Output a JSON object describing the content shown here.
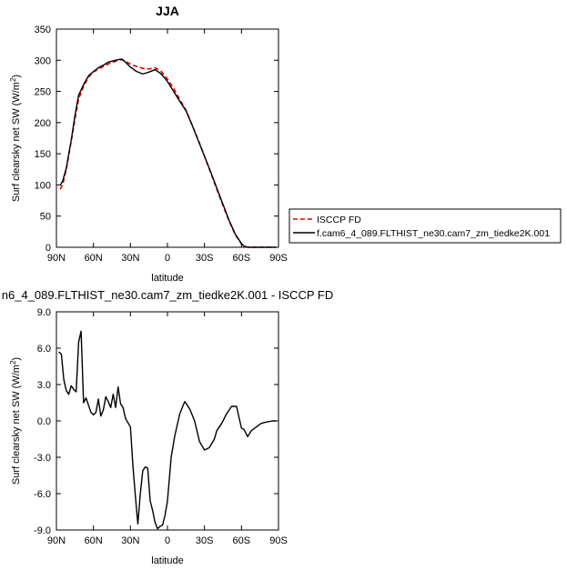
{
  "chart_data": [
    {
      "type": "line",
      "title": "JJA",
      "xlabel": "latitude",
      "ylabel": "Surf clearsky net SW (W/m",
      "ylabel_sup": "2",
      "ylabel_end": ")",
      "xlim": [
        90,
        -90
      ],
      "ylim": [
        0,
        350
      ],
      "xticks": [
        90,
        60,
        30,
        0,
        -30,
        -60,
        -90
      ],
      "xtick_labels": [
        "90N",
        "60N",
        "30N",
        "0",
        "30S",
        "60S",
        "90S"
      ],
      "yticks": [
        0,
        50,
        100,
        150,
        200,
        250,
        300,
        350
      ],
      "ytick_labels": [
        "0",
        "50",
        "100",
        "150",
        "200",
        "250",
        "300",
        "350"
      ],
      "legend_position": "right",
      "series": [
        {
          "name": "ISCCP FD",
          "color": "#dd0000",
          "dash": "dashed",
          "x": [
            87,
            85,
            82,
            78,
            75,
            72,
            68,
            64,
            60,
            56,
            52,
            48,
            44,
            40,
            37,
            34,
            30,
            25,
            20,
            15,
            10,
            5,
            0,
            -5,
            -10,
            -15,
            -20,
            -25,
            -30,
            -35,
            -40,
            -45,
            -50,
            -55,
            -60,
            -62,
            -64,
            -66,
            -70,
            -75,
            -80,
            -85,
            -88
          ],
          "y": [
            93,
            100,
            125,
            170,
            205,
            238,
            258,
            273,
            281,
            286,
            290,
            294,
            297,
            300,
            301,
            298,
            294,
            290,
            287,
            286,
            288,
            282,
            270,
            255,
            237,
            220,
            196,
            172,
            146,
            120,
            93,
            67,
            42,
            20,
            5,
            2,
            0.5,
            0,
            0,
            0,
            0,
            0,
            0
          ]
        },
        {
          "name": "f.cam6_4_089.FLTHIST_ne30.cam7_zm_tiedke2K.001",
          "color": "#000000",
          "dash": "solid",
          "x": [
            87,
            85,
            82,
            78,
            75,
            72,
            68,
            64,
            60,
            56,
            52,
            48,
            44,
            40,
            37,
            34,
            30,
            25,
            20,
            15,
            10,
            5,
            0,
            -5,
            -10,
            -15,
            -20,
            -25,
            -30,
            -35,
            -40,
            -45,
            -50,
            -55,
            -60,
            -62,
            -64,
            -66,
            -70,
            -75,
            -80,
            -85,
            -88
          ],
          "y": [
            99,
            106,
            127,
            172,
            211,
            244,
            261,
            275,
            282,
            288,
            292,
            297,
            299,
            301,
            302,
            297,
            289,
            282,
            278,
            281,
            285,
            278,
            266,
            250,
            234,
            219,
            196,
            171,
            146,
            121,
            95,
            69,
            43,
            21,
            6,
            2,
            0.5,
            0,
            0,
            0,
            0,
            0,
            0
          ]
        }
      ]
    },
    {
      "type": "line",
      "title": "n6_4_089.FLTHIST_ne30.cam7_zm_tiedke2K.001 - ISCCP FD",
      "xlabel": "latitude",
      "ylabel": "Surf clearsky net SW (W/m",
      "ylabel_sup": "2",
      "ylabel_end": ")",
      "xlim": [
        90,
        -90
      ],
      "ylim": [
        -9,
        9
      ],
      "xticks": [
        90,
        60,
        30,
        0,
        -30,
        -60,
        -90
      ],
      "xtick_labels": [
        "90N",
        "60N",
        "30N",
        "0",
        "30S",
        "60S",
        "90S"
      ],
      "yticks": [
        -9,
        -6,
        -3,
        0,
        3,
        6,
        9
      ],
      "ytick_labels": [
        "-9.0",
        "-6.0",
        "-3.0",
        "0.0",
        "3.0",
        "6.0",
        "9.0"
      ],
      "series": [
        {
          "color": "#000000",
          "dash": "solid",
          "x": [
            88,
            86,
            84,
            82,
            80,
            78,
            76,
            74,
            72,
            70,
            68,
            66,
            64,
            62,
            60,
            58,
            56,
            54,
            52,
            50,
            48,
            46,
            44,
            42,
            40,
            38,
            36,
            34,
            30,
            28,
            26,
            24,
            22,
            20,
            18,
            16,
            14,
            12,
            10,
            8,
            6,
            4,
            2,
            0,
            -3,
            -6,
            -10,
            -14,
            -18,
            -22,
            -26,
            -30,
            -34,
            -38,
            -40,
            -44,
            -48,
            -52,
            -56,
            -60,
            -62,
            -65,
            -68,
            -72,
            -76,
            -80,
            -85,
            -88
          ],
          "y": [
            5.7,
            5.5,
            3.4,
            2.5,
            2.2,
            2.9,
            2.6,
            2.4,
            6.5,
            7.4,
            1.5,
            1.9,
            1.3,
            0.7,
            0.5,
            0.7,
            1.8,
            0.4,
            0.9,
            2.0,
            1.6,
            1.1,
            2.2,
            1.1,
            2.8,
            1.4,
            1.1,
            0.2,
            -0.5,
            -3.7,
            -6.2,
            -8.5,
            -6.0,
            -4.1,
            -3.8,
            -3.9,
            -6.6,
            -7.4,
            -8.4,
            -8.9,
            -8.7,
            -8.6,
            -7.8,
            -6.6,
            -3.0,
            -1.2,
            0.6,
            1.6,
            1.0,
            0.0,
            -1.7,
            -2.4,
            -2.2,
            -1.5,
            -0.8,
            -0.2,
            0.6,
            1.2,
            1.2,
            -0.6,
            -0.7,
            -1.3,
            -0.8,
            -0.5,
            -0.2,
            -0.1,
            0.0,
            0.0
          ]
        }
      ]
    }
  ]
}
